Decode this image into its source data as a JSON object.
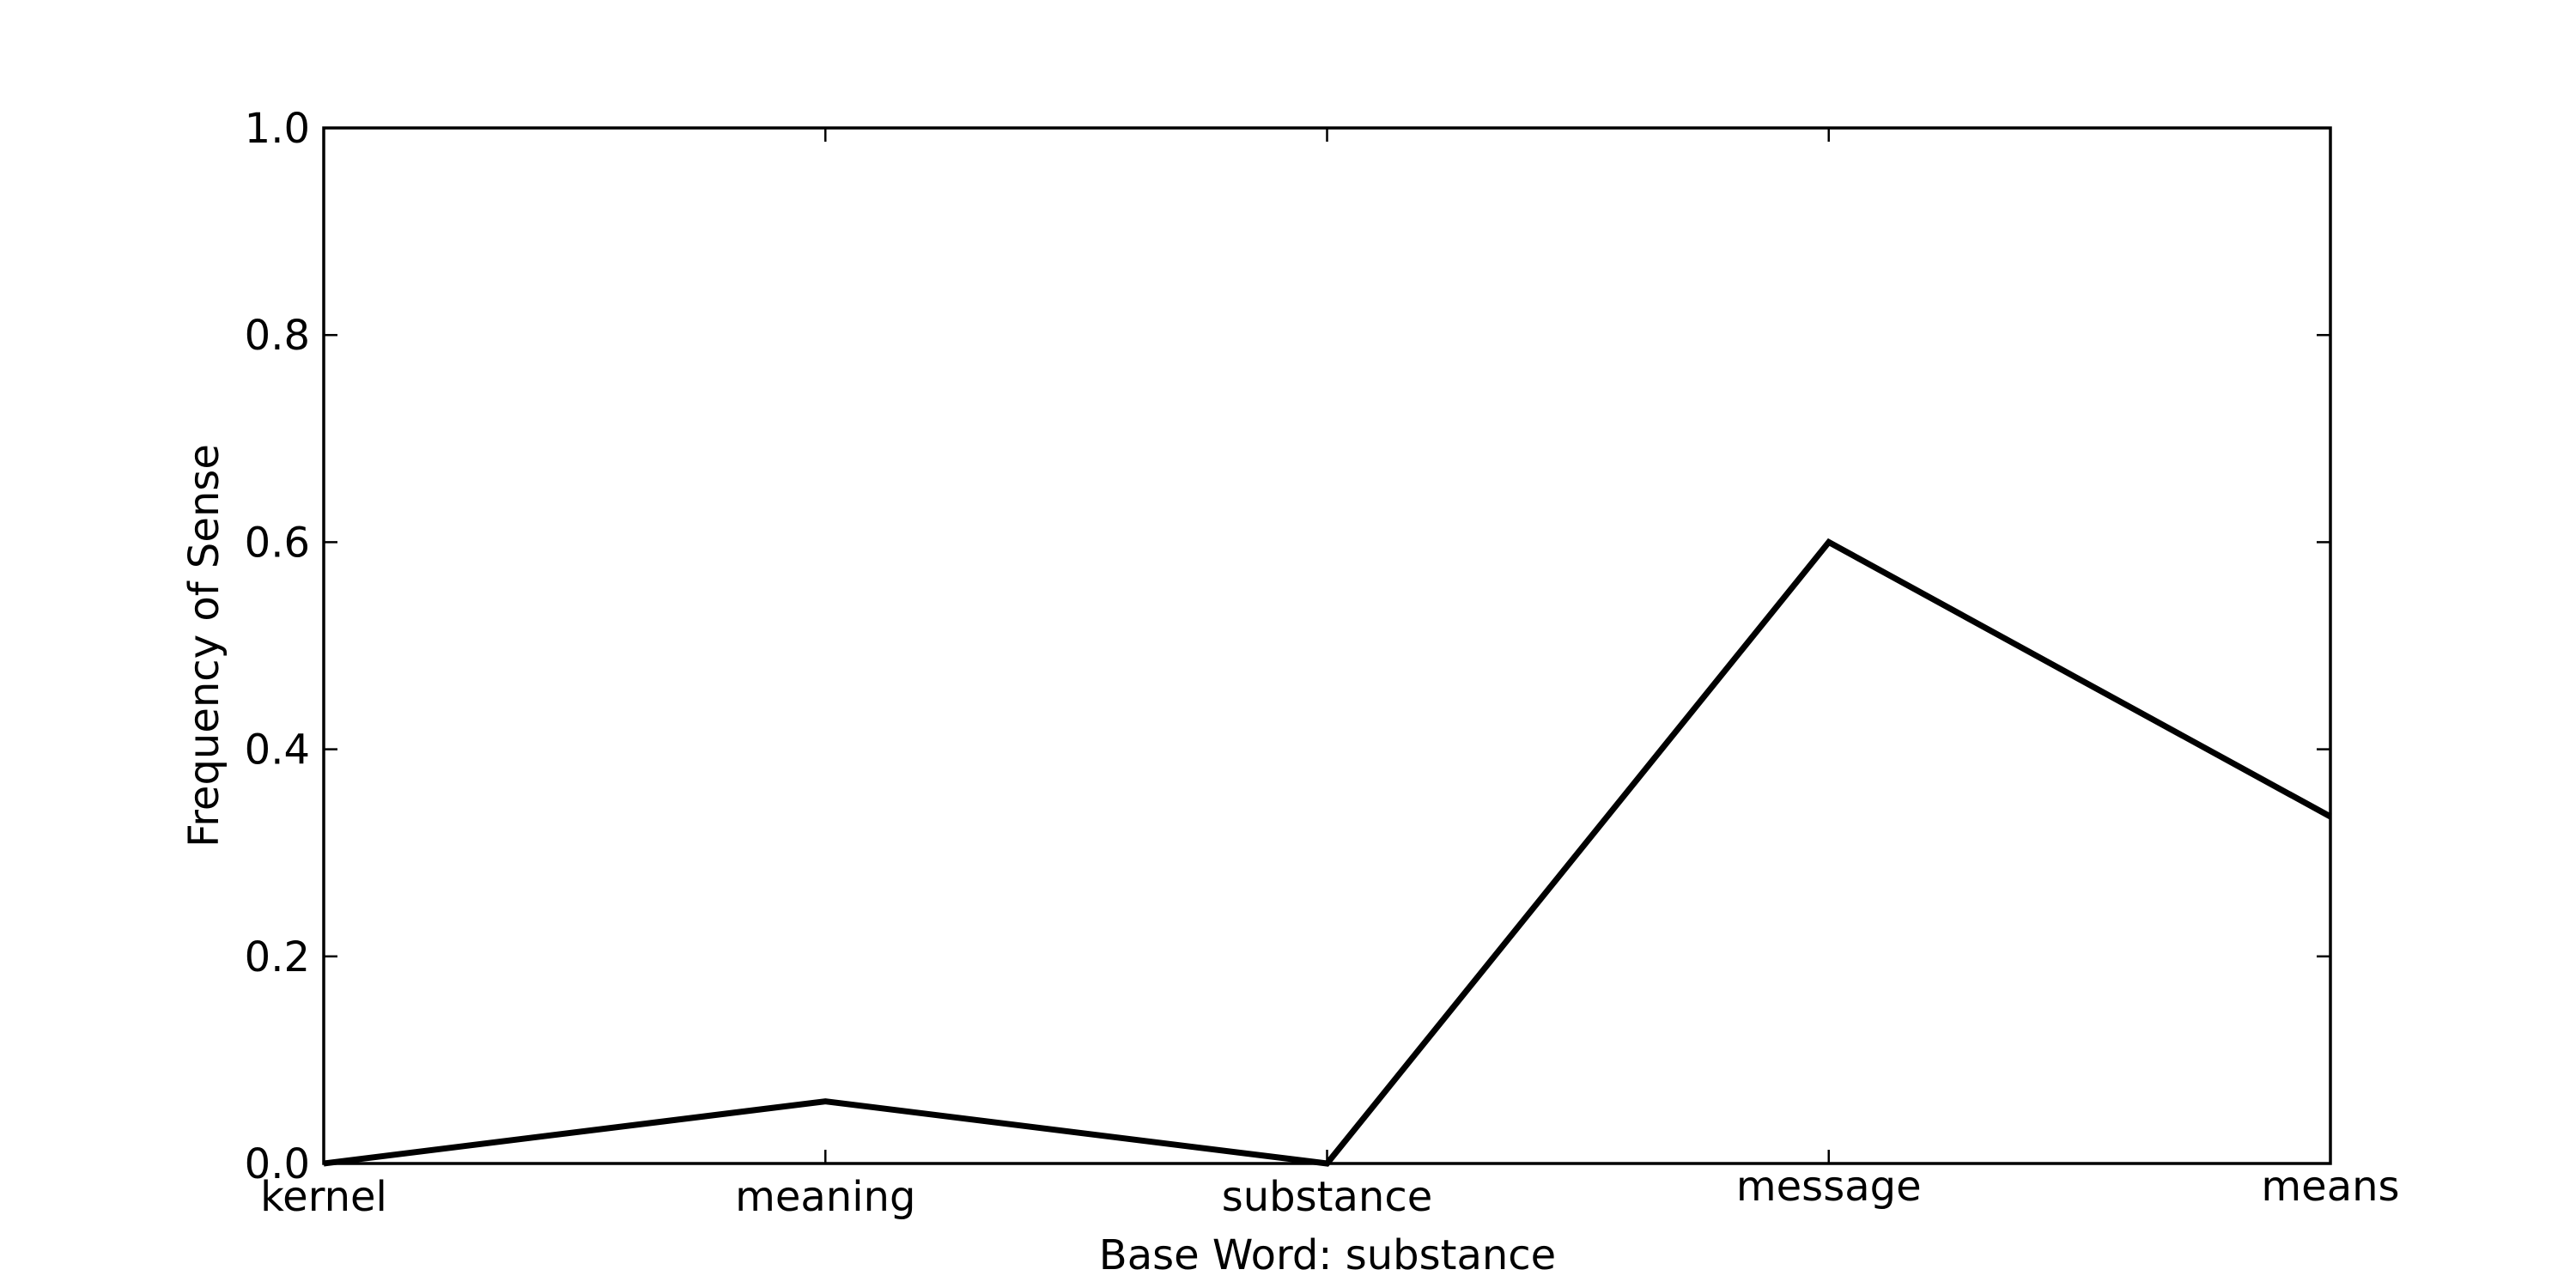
{
  "chart_data": {
    "type": "line",
    "categories": [
      "kernel",
      "meaning",
      "substance",
      "message",
      "means"
    ],
    "series": [
      {
        "values": [
          0.0,
          0.06,
          0.0,
          0.6,
          0.335
        ],
        "color": "#000000"
      }
    ],
    "xlabel": "Base Word: substance",
    "ylabel": "Frequency of Sense",
    "ylim": [
      0.0,
      1.0
    ],
    "yticks": [
      "0.0",
      "0.2",
      "0.4",
      "0.6",
      "0.8",
      "1.0"
    ],
    "grid": false,
    "legend": "none"
  }
}
